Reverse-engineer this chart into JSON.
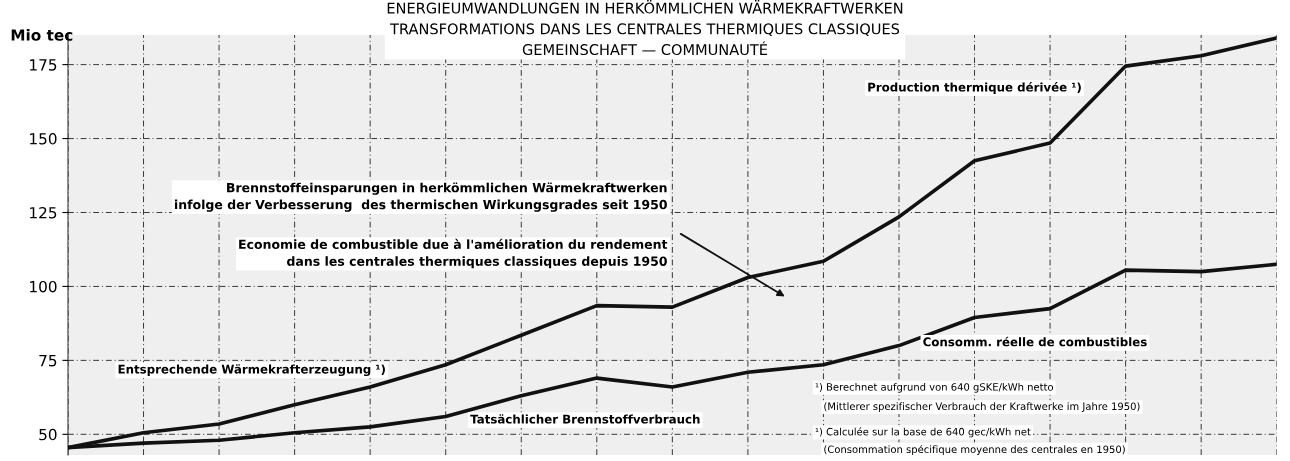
{
  "chart_data": {
    "type": "line",
    "title": "ENERGIEUMWANDLUNGEN IN HERKÖMMLICHEN WÄRMEKRAFTWERKEN\nTRANSFORMATIONS DANS LES CENTRALES THERMIQUES CLASSIQUES\nGEMEINSCHAFT — COMMUNAUTÉ",
    "ylabel": "Mio tec",
    "categories": [
      null,
      null,
      null,
      null,
      null,
      null,
      null,
      null,
      null,
      null,
      null,
      null,
      null,
      null,
      null,
      null,
      null
    ],
    "series": [
      {
        "name": "Entsprechende Wärmekrafterzeugung ¹)",
        "color": "#111111",
        "values": [
          45.5,
          50.5,
          53.5,
          60,
          66,
          73.5,
          83.5,
          93.5,
          93,
          103,
          108.5,
          123.5,
          142.5,
          148.5,
          174.5,
          178,
          184
        ]
      },
      {
        "name": "Tatsächlicher Brennstoffverbrauch",
        "color": "#111111",
        "values": [
          45.5,
          47,
          48,
          50.5,
          52.5,
          56,
          63,
          69,
          66,
          71,
          73.5,
          80,
          89.5,
          92.5,
          105.5,
          105,
          107.5
        ]
      }
    ],
    "annotations": [
      "Production thermique dérivée ¹)",
      "Brennstoffeinsparungen in herkömmlichen Wärmekraftwerken\ninfolge der Verbesserung  des thermischen Wirkungsgrades seit 1950",
      "Economie de combustible due à l'amélioration du rendement\ndans les centrales thermiques classiques depuis 1950",
      "Consomm. réelle de combustibles",
      "¹) Berechnet aufgrund von 640 gSKE/kWh netto",
      "(Mittlerer spezifischer Verbrauch der Kraftwerke im Jahre 1950)",
      "¹) Calculée sur la base de 640 gec/kWh net",
      "(Consommation spécifique moyenne des centrales en 1950)"
    ],
    "ylim": [
      43,
      185
    ],
    "yticks": [
      50,
      75,
      100,
      125,
      150,
      175
    ],
    "grid": true,
    "tick_labels": "y",
    "line_style": "solid",
    "marker": "none",
    "legend": false
  }
}
